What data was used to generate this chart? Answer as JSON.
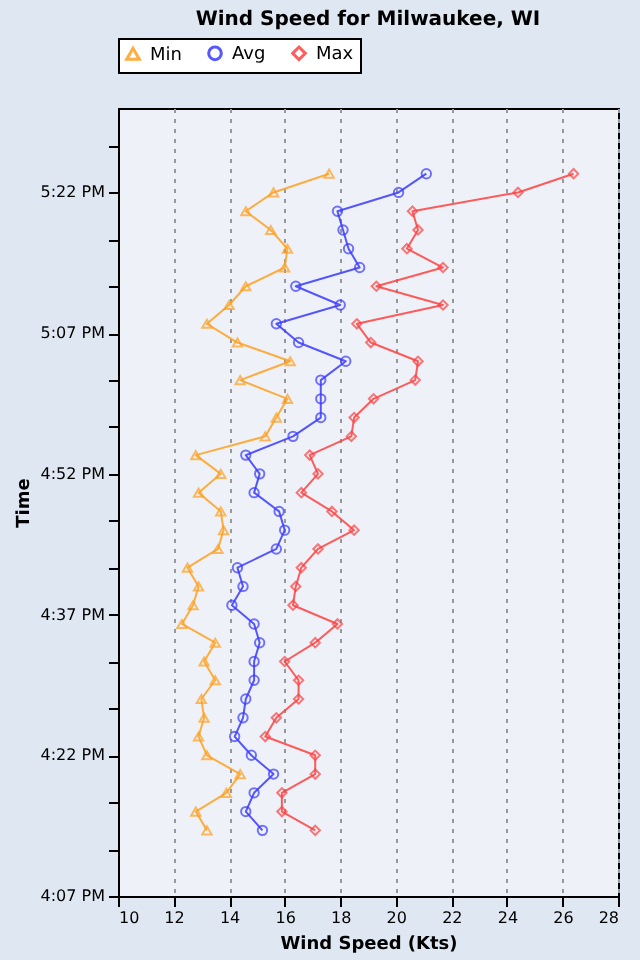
{
  "chart_data": {
    "type": "line",
    "orientation": "horizontal",
    "title": "Wind Speed for Milwaukee, WI",
    "xlabel": "Wind Speed (Kts)",
    "ylabel": "Time",
    "x": [
      16.2333,
      16.2667,
      16.3,
      16.3333,
      16.3667,
      16.4,
      16.4333,
      16.4667,
      16.5,
      16.5333,
      16.5667,
      16.6,
      16.6333,
      16.6667,
      16.7,
      16.7333,
      16.7667,
      16.8,
      16.8333,
      16.8667,
      16.9,
      16.9333,
      16.9667,
      17.0,
      17.0333,
      17.0667,
      17.1,
      17.1333,
      17.1667,
      17.2,
      17.2333,
      17.2667,
      17.3,
      17.3333,
      17.3667,
      17.4
    ],
    "series": [
      {
        "name": "Min",
        "color": "#ffa020",
        "marker": "triangle",
        "values": [
          13.2,
          12.8,
          13.9,
          14.4,
          13.2,
          12.9,
          13.1,
          13.0,
          13.5,
          13.1,
          13.5,
          12.3,
          12.7,
          12.9,
          12.5,
          13.6,
          13.8,
          13.7,
          12.9,
          13.7,
          12.8,
          15.3,
          15.7,
          16.1,
          14.4,
          16.2,
          14.3,
          13.2,
          14.0,
          14.6,
          16.0,
          16.1,
          15.5,
          14.6,
          15.6,
          17.6
        ]
      },
      {
        "name": "Avg",
        "color": "#3a3aff",
        "marker": "circle",
        "values": [
          15.2,
          14.6,
          14.9,
          15.6,
          14.8,
          14.2,
          14.5,
          14.6,
          14.9,
          14.9,
          15.1,
          14.9,
          14.1,
          14.5,
          14.3,
          15.7,
          16.0,
          15.8,
          14.9,
          15.1,
          14.6,
          16.3,
          17.3,
          17.3,
          17.3,
          18.2,
          16.5,
          15.7,
          18.0,
          16.4,
          18.7,
          18.3,
          18.1,
          17.9,
          20.1,
          21.1
        ]
      },
      {
        "name": "Max",
        "color": "#ff4040",
        "marker": "diamond",
        "values": [
          17.1,
          15.9,
          15.9,
          17.1,
          17.1,
          15.3,
          15.7,
          16.5,
          16.5,
          16.0,
          17.1,
          17.9,
          16.3,
          16.4,
          16.6,
          17.2,
          18.5,
          17.7,
          16.6,
          17.2,
          16.9,
          18.4,
          18.5,
          19.2,
          20.7,
          20.8,
          19.1,
          18.6,
          21.7,
          19.3,
          21.7,
          20.4,
          20.8,
          20.6,
          24.4,
          26.4
        ]
      }
    ],
    "xlim": [
      10,
      28
    ],
    "xticks": [
      10,
      12,
      14,
      16,
      18,
      20,
      22,
      24,
      26,
      28
    ],
    "ylim": [
      16.1167,
      17.5167
    ],
    "yticks": [
      {
        "value": 16.1167,
        "label": "4:07 PM"
      },
      {
        "value": 16.2,
        "label": null
      },
      {
        "value": 16.2833,
        "label": null
      },
      {
        "value": 16.3667,
        "label": "4:22 PM"
      },
      {
        "value": 16.45,
        "label": null
      },
      {
        "value": 16.5333,
        "label": null
      },
      {
        "value": 16.6167,
        "label": "4:37 PM"
      },
      {
        "value": 16.7,
        "label": null
      },
      {
        "value": 16.7833,
        "label": null
      },
      {
        "value": 16.8667,
        "label": "4:52 PM"
      },
      {
        "value": 16.95,
        "label": null
      },
      {
        "value": 17.0333,
        "label": null
      },
      {
        "value": 17.1167,
        "label": "5:07 PM"
      },
      {
        "value": 17.2,
        "label": null
      },
      {
        "value": 17.2833,
        "label": null
      },
      {
        "value": 17.3667,
        "label": "5:22 PM"
      },
      {
        "value": 17.45,
        "label": null
      }
    ],
    "grid": "x",
    "legend": "top",
    "line_style": "solid"
  }
}
